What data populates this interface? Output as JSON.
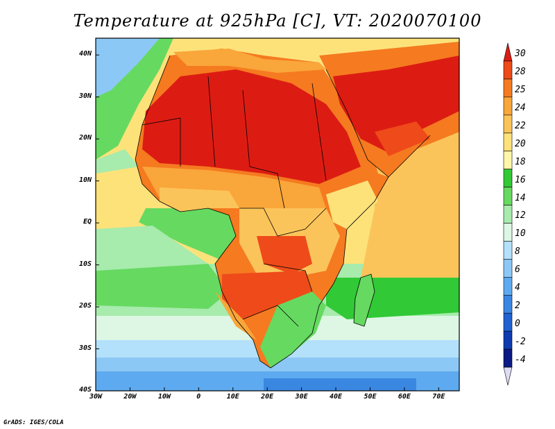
{
  "title": "Temperature at 925hPa [C], VT: 2020070100",
  "credit": "GrADS: IGES/COLA",
  "map": {
    "lat_labels": [
      "40N",
      "30N",
      "20N",
      "10N",
      "EQ",
      "10S",
      "20S",
      "30S",
      "40S"
    ],
    "lon_labels": [
      "30W",
      "20W",
      "10W",
      "0",
      "10E",
      "20E",
      "30E",
      "40E",
      "50E",
      "60E",
      "70E"
    ],
    "extent": {
      "lon_min": -30,
      "lon_max": 76,
      "lat_min": -40,
      "lat_max": 44
    }
  },
  "colorbar": {
    "labels": [
      "30",
      "28",
      "25",
      "24",
      "22",
      "20",
      "18",
      "16",
      "14",
      "12",
      "10",
      "8",
      "6",
      "4",
      "2",
      "0",
      "-2",
      "-4"
    ],
    "colors": [
      "#dc1c13",
      "#ee4a1a",
      "#f57a20",
      "#f9a63a",
      "#fbc45a",
      "#fde27a",
      "#fef6a8",
      "#31c936",
      "#66d960",
      "#a7ebad",
      "#ddf7e4",
      "#b3e0fb",
      "#8cc8f5",
      "#5eaaf0",
      "#3a87e2",
      "#2062d1",
      "#0f3bb0",
      "#0b1a84",
      "#dedcf5"
    ]
  }
}
